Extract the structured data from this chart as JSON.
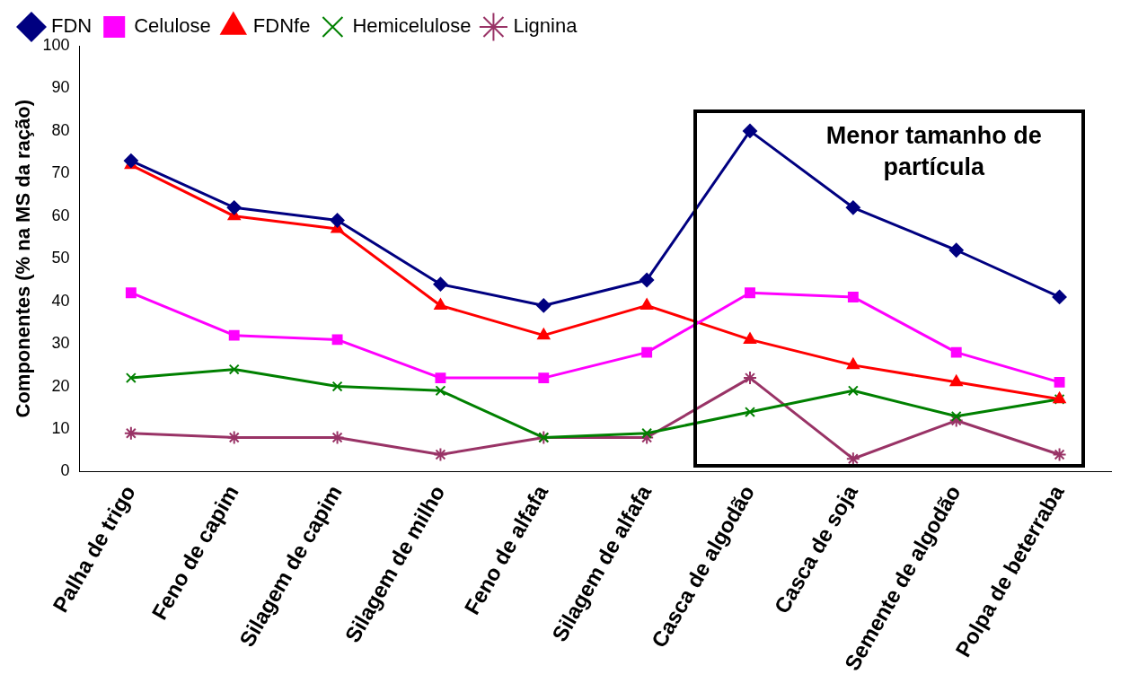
{
  "chart_data": {
    "type": "line",
    "ylabel": "Componentes (% na MS da ração)",
    "categories": [
      "Palha de trigo",
      "Feno de capim",
      "Silagem de capim",
      "Silagem de milho",
      "Feno de alfafa",
      "Silagem de alfafa",
      "Casca de algodão",
      "Casca de soja",
      "Semente de algodão",
      "Polpa de beterraba"
    ],
    "series": [
      {
        "name": "FDN",
        "color": "#000080",
        "marker": "diamond",
        "values": [
          73,
          62,
          59,
          44,
          39,
          45,
          80,
          62,
          52,
          41
        ]
      },
      {
        "name": "Celulose",
        "color": "#ff00ff",
        "marker": "square",
        "values": [
          42,
          32,
          31,
          22,
          22,
          28,
          42,
          41,
          28,
          21
        ]
      },
      {
        "name": "FDNfe",
        "color": "#ff0000",
        "marker": "triangle",
        "values": [
          72,
          60,
          57,
          39,
          32,
          39,
          31,
          25,
          21,
          17
        ]
      },
      {
        "name": "Hemicelulose",
        "color": "#008000",
        "marker": "cross",
        "values": [
          22,
          24,
          20,
          19,
          8,
          9,
          14,
          19,
          13,
          17
        ]
      },
      {
        "name": "Lignina",
        "color": "#993366",
        "marker": "cross",
        "values": [
          9,
          8,
          8,
          4,
          8,
          8,
          22,
          3,
          12,
          4
        ]
      }
    ],
    "ylim": [
      0,
      100
    ],
    "yticks": [
      0,
      10,
      20,
      30,
      40,
      50,
      60,
      70,
      80,
      90,
      100
    ],
    "grid": false,
    "legend": "top left",
    "annotations": [
      "Menor tamanho de partícula"
    ]
  }
}
